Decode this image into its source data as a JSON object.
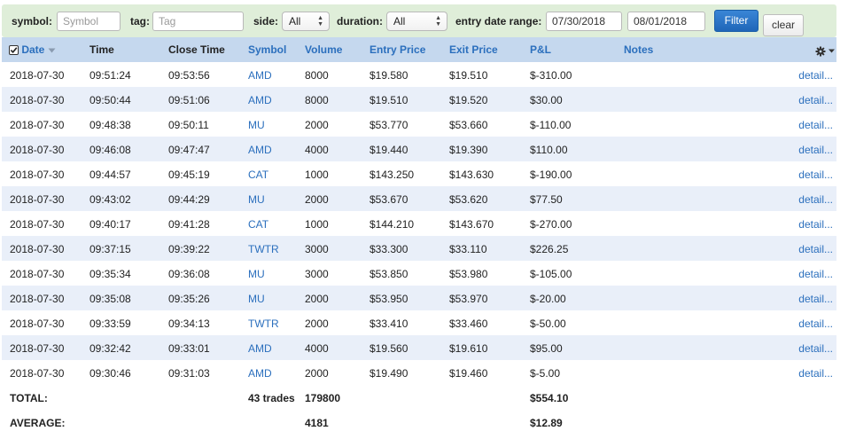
{
  "filters": {
    "symbol_label": "symbol:",
    "symbol_placeholder": "Symbol",
    "tag_label": "tag:",
    "tag_placeholder": "Tag",
    "side_label": "side:",
    "side_value": "All",
    "duration_label": "duration:",
    "duration_value": "All",
    "date_range_label": "entry date range:",
    "date_from": "07/30/2018",
    "date_to": "08/01/2018",
    "filter_button": "Filter",
    "clear_button": "clear"
  },
  "columns": {
    "date": "Date",
    "time": "Time",
    "close_time": "Close Time",
    "symbol": "Symbol",
    "volume": "Volume",
    "entry_price": "Entry Price",
    "exit_price": "Exit Price",
    "pl": "P&L",
    "notes": "Notes"
  },
  "icons": {
    "select_all": "checkbox-checked-icon",
    "sort": "sort-down-icon",
    "settings": "gear-icon"
  },
  "rows": [
    {
      "date": "2018-07-30",
      "time": "09:51:24",
      "close_time": "09:53:56",
      "symbol": "AMD",
      "volume": "8000",
      "entry": "$19.580",
      "exit": "$19.510",
      "pl": "$-310.00",
      "detail": "detail..."
    },
    {
      "date": "2018-07-30",
      "time": "09:50:44",
      "close_time": "09:51:06",
      "symbol": "AMD",
      "volume": "8000",
      "entry": "$19.510",
      "exit": "$19.520",
      "pl": "$30.00",
      "detail": "detail..."
    },
    {
      "date": "2018-07-30",
      "time": "09:48:38",
      "close_time": "09:50:11",
      "symbol": "MU",
      "volume": "2000",
      "entry": "$53.770",
      "exit": "$53.660",
      "pl": "$-110.00",
      "detail": "detail..."
    },
    {
      "date": "2018-07-30",
      "time": "09:46:08",
      "close_time": "09:47:47",
      "symbol": "AMD",
      "volume": "4000",
      "entry": "$19.440",
      "exit": "$19.390",
      "pl": "$110.00",
      "detail": "detail..."
    },
    {
      "date": "2018-07-30",
      "time": "09:44:57",
      "close_time": "09:45:19",
      "symbol": "CAT",
      "volume": "1000",
      "entry": "$143.250",
      "exit": "$143.630",
      "pl": "$-190.00",
      "detail": "detail..."
    },
    {
      "date": "2018-07-30",
      "time": "09:43:02",
      "close_time": "09:44:29",
      "symbol": "MU",
      "volume": "2000",
      "entry": "$53.670",
      "exit": "$53.620",
      "pl": "$77.50",
      "detail": "detail..."
    },
    {
      "date": "2018-07-30",
      "time": "09:40:17",
      "close_time": "09:41:28",
      "symbol": "CAT",
      "volume": "1000",
      "entry": "$144.210",
      "exit": "$143.670",
      "pl": "$-270.00",
      "detail": "detail..."
    },
    {
      "date": "2018-07-30",
      "time": "09:37:15",
      "close_time": "09:39:22",
      "symbol": "TWTR",
      "volume": "3000",
      "entry": "$33.300",
      "exit": "$33.110",
      "pl": "$226.25",
      "detail": "detail..."
    },
    {
      "date": "2018-07-30",
      "time": "09:35:34",
      "close_time": "09:36:08",
      "symbol": "MU",
      "volume": "3000",
      "entry": "$53.850",
      "exit": "$53.980",
      "pl": "$-105.00",
      "detail": "detail..."
    },
    {
      "date": "2018-07-30",
      "time": "09:35:08",
      "close_time": "09:35:26",
      "symbol": "MU",
      "volume": "2000",
      "entry": "$53.950",
      "exit": "$53.970",
      "pl": "$-20.00",
      "detail": "detail..."
    },
    {
      "date": "2018-07-30",
      "time": "09:33:59",
      "close_time": "09:34:13",
      "symbol": "TWTR",
      "volume": "2000",
      "entry": "$33.410",
      "exit": "$33.460",
      "pl": "$-50.00",
      "detail": "detail..."
    },
    {
      "date": "2018-07-30",
      "time": "09:32:42",
      "close_time": "09:33:01",
      "symbol": "AMD",
      "volume": "4000",
      "entry": "$19.560",
      "exit": "$19.610",
      "pl": "$95.00",
      "detail": "detail..."
    },
    {
      "date": "2018-07-30",
      "time": "09:30:46",
      "close_time": "09:31:03",
      "symbol": "AMD",
      "volume": "2000",
      "entry": "$19.490",
      "exit": "$19.460",
      "pl": "$-5.00",
      "detail": "detail..."
    }
  ],
  "total": {
    "label": "TOTAL:",
    "trades": "43 trades",
    "volume": "179800",
    "pl": "$554.10"
  },
  "average": {
    "label": "AVERAGE:",
    "volume": "4181",
    "pl": "$12.89"
  }
}
